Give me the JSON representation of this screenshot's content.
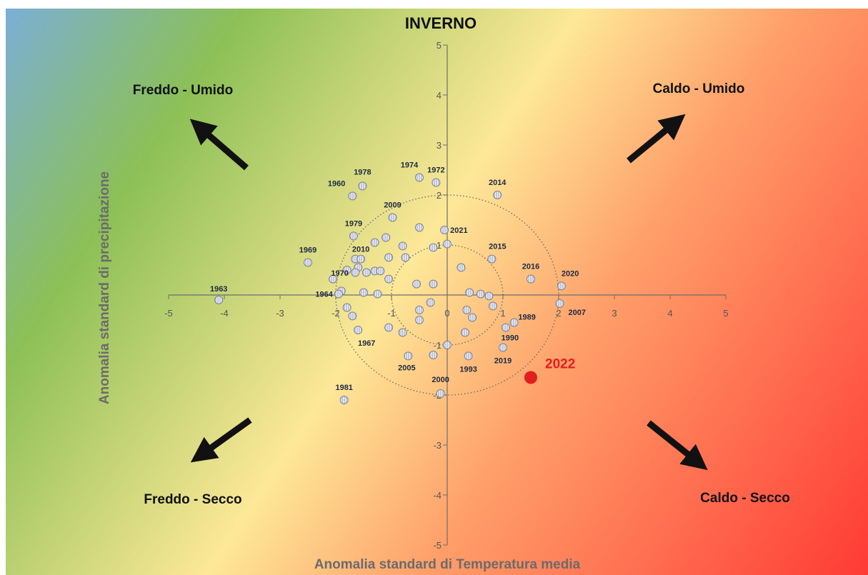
{
  "chart_data": {
    "type": "scatter",
    "title": "INVERNO",
    "xlabel": "Anomalia standard di Temperatura media",
    "ylabel": "Anomalia standard di precipitazione",
    "xlim": [
      -5,
      5
    ],
    "ylim": [
      -5,
      5
    ],
    "x_ticks": [
      "-5",
      "-4",
      "-3",
      "-2",
      "-1",
      "0",
      "1",
      "2",
      "3",
      "4",
      "5"
    ],
    "y_ticks": [
      "5",
      "4",
      "3",
      "2",
      "1",
      "0",
      "-1",
      "-2",
      "-3",
      "-4",
      "-5"
    ],
    "reference_circles_radius": [
      1,
      2
    ],
    "quadrant_labels": {
      "top_left": "Freddo - Umido",
      "top_right": "Caldo - Umido",
      "bottom_left": "Freddo - Secco",
      "bottom_right": "Caldo - Secco"
    },
    "labeled_points": [
      {
        "label": "1963",
        "x": -4.1,
        "y": -0.1
      },
      {
        "label": "1960",
        "x": -1.7,
        "y": 1.98
      },
      {
        "label": "1978",
        "x": -1.52,
        "y": 2.18
      },
      {
        "label": "1974",
        "x": -0.5,
        "y": 2.35
      },
      {
        "label": "1972",
        "x": -0.2,
        "y": 2.25
      },
      {
        "label": "2014",
        "x": 0.9,
        "y": 2.0
      },
      {
        "label": "2009",
        "x": -0.98,
        "y": 1.55
      },
      {
        "label": "1979",
        "x": -1.68,
        "y": 1.18
      },
      {
        "label": "2021",
        "x": -0.05,
        "y": 1.3
      },
      {
        "label": "2015",
        "x": 0.8,
        "y": 0.72
      },
      {
        "label": "1969",
        "x": -2.5,
        "y": 0.65
      },
      {
        "label": "2010",
        "x": -1.55,
        "y": 0.72
      },
      {
        "label": "1970",
        "x": -1.8,
        "y": 0.5
      },
      {
        "label": "2016",
        "x": 1.5,
        "y": 0.32
      },
      {
        "label": "2020",
        "x": 2.05,
        "y": 0.18
      },
      {
        "label": "1964",
        "x": -1.95,
        "y": 0.02
      },
      {
        "label": "1989",
        "x": 1.2,
        "y": -0.55
      },
      {
        "label": "2007",
        "x": 2.02,
        "y": -0.17
      },
      {
        "label": "1967",
        "x": -1.6,
        "y": -0.7
      },
      {
        "label": "1990",
        "x": 1.05,
        "y": -0.65
      },
      {
        "label": "2019",
        "x": 1.0,
        "y": -1.05
      },
      {
        "label": "2005",
        "x": -0.7,
        "y": -1.22
      },
      {
        "label": "1993",
        "x": 0.38,
        "y": -1.22
      },
      {
        "label": "2000",
        "x": -0.12,
        "y": -1.97
      },
      {
        "label": "1981",
        "x": -1.85,
        "y": -2.1
      }
    ],
    "unlabeled_points": [
      {
        "x": -1.1,
        "y": 1.15
      },
      {
        "x": -1.3,
        "y": 1.05
      },
      {
        "x": -0.8,
        "y": 0.98
      },
      {
        "x": -0.5,
        "y": 1.35
      },
      {
        "x": -0.25,
        "y": 0.95
      },
      {
        "x": 0.0,
        "y": 1.02
      },
      {
        "x": -1.65,
        "y": 0.72
      },
      {
        "x": -1.05,
        "y": 0.75
      },
      {
        "x": -0.75,
        "y": 0.75
      },
      {
        "x": -1.6,
        "y": 0.55
      },
      {
        "x": -1.3,
        "y": 0.48
      },
      {
        "x": -1.2,
        "y": 0.48
      },
      {
        "x": -1.45,
        "y": 0.45
      },
      {
        "x": -1.65,
        "y": 0.45
      },
      {
        "x": -2.05,
        "y": 0.32
      },
      {
        "x": -1.05,
        "y": 0.32
      },
      {
        "x": 0.25,
        "y": 0.55
      },
      {
        "x": -0.55,
        "y": 0.22
      },
      {
        "x": -0.25,
        "y": 0.22
      },
      {
        "x": -1.9,
        "y": 0.08
      },
      {
        "x": -1.5,
        "y": 0.05
      },
      {
        "x": -1.25,
        "y": 0.02
      },
      {
        "x": 0.4,
        "y": 0.05
      },
      {
        "x": 0.6,
        "y": 0.02
      },
      {
        "x": 0.75,
        "y": -0.02
      },
      {
        "x": 0.82,
        "y": -0.22
      },
      {
        "x": -0.3,
        "y": -0.15
      },
      {
        "x": -1.8,
        "y": -0.25
      },
      {
        "x": -0.5,
        "y": -0.3
      },
      {
        "x": 0.35,
        "y": -0.3
      },
      {
        "x": -1.7,
        "y": -0.42
      },
      {
        "x": 0.45,
        "y": -0.45
      },
      {
        "x": -0.5,
        "y": -0.5
      },
      {
        "x": -1.05,
        "y": -0.65
      },
      {
        "x": -0.8,
        "y": -0.75
      },
      {
        "x": 0.32,
        "y": -0.75
      },
      {
        "x": -0.25,
        "y": -1.2
      },
      {
        "x": 0.0,
        "y": -1.0
      }
    ],
    "highlight_point": {
      "label": "2022",
      "x": 1.5,
      "y": -1.65,
      "color": "#e31e1e"
    },
    "colors": {
      "background_corner_top_left": "#7aaedc",
      "background_wet_band": "#8cc056",
      "background_center": "#fde898",
      "background_corner_bottom_right": "#ff3a35",
      "point_fill": "#bfc4d4",
      "point_stroke": "#7d8296",
      "axis": "#6e6e6e",
      "circle": "#6e6e6e"
    }
  }
}
